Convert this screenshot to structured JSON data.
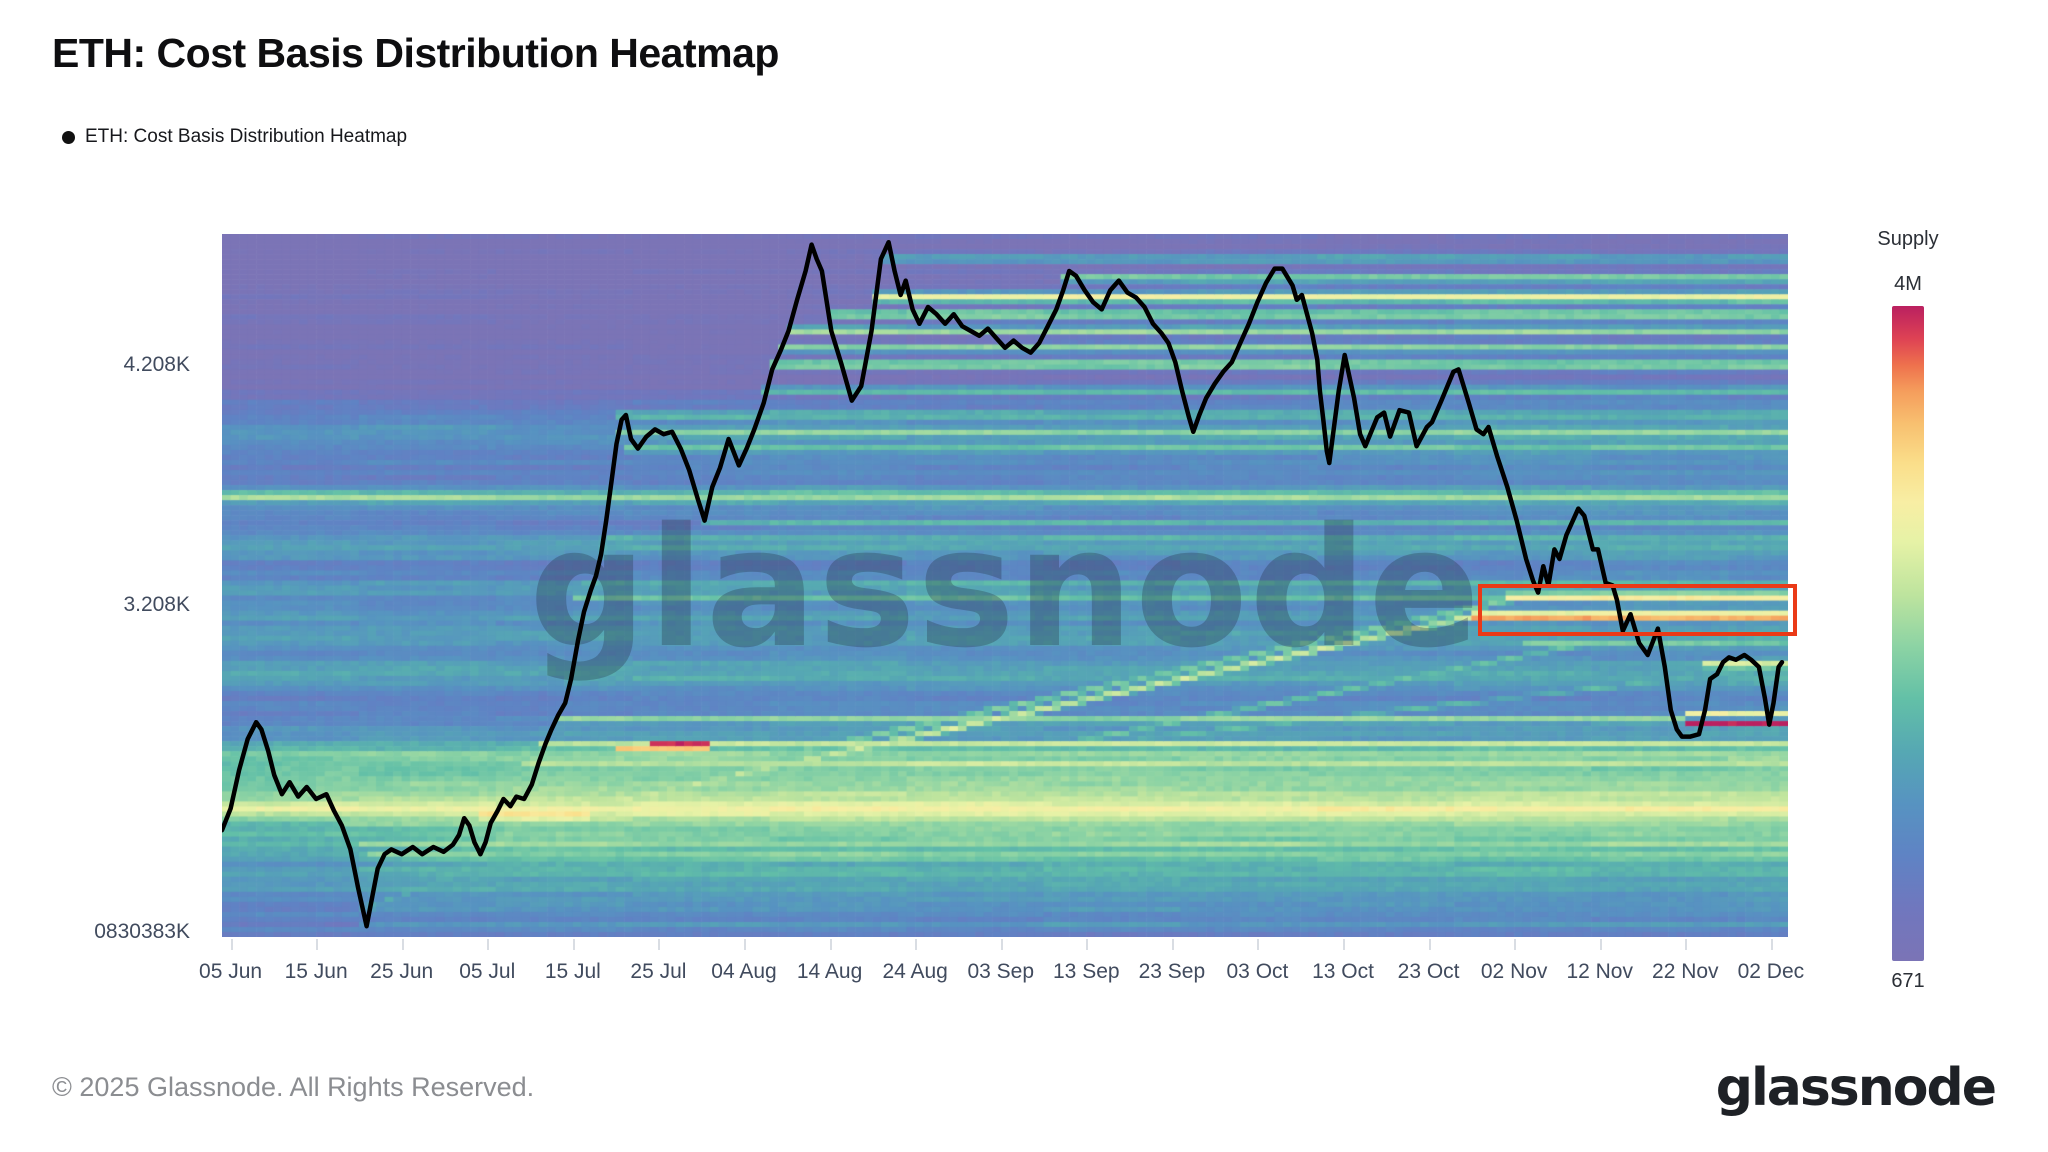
{
  "header": {
    "title": "ETH: Cost Basis Distribution Heatmap"
  },
  "legend": {
    "label": "ETH: Cost Basis Distribution Heatmap"
  },
  "watermark": {
    "text": "glassnode"
  },
  "footer": {
    "copyright": "© 2025 Glassnode. All Rights Reserved.",
    "brand": "glassnode"
  },
  "colorbar": {
    "title": "Supply",
    "max_label": "4M",
    "min_label": "671"
  },
  "colors": {
    "annotation": "#ea3a17",
    "price_line": "#000000",
    "title_text": "#0e0e10",
    "axis_text": "#414b5e",
    "footer_text": "#8b8d91",
    "brand_text": "#1e2126"
  },
  "annotation_box": {
    "day0": 146.8,
    "price0": 3.296,
    "day1": 184.0,
    "price1": 3.079
  },
  "chart_data": {
    "type": "heatmap",
    "title": "ETH: Cost Basis Distribution Heatmap",
    "xlabel": "",
    "ylabel": "",
    "x_domain_days": [
      0,
      183
    ],
    "price_domain": [
      1.825,
      4.754
    ],
    "grid": false,
    "legend_position": "top-left",
    "y_ticks": [
      {
        "label": "4.208K",
        "price": 4.208
      },
      {
        "label": "3.208K",
        "price": 3.208
      },
      {
        "label": "0830383K",
        "price": 1.845
      }
    ],
    "x_ticks": [
      {
        "label": "05 Jun",
        "day": 1
      },
      {
        "label": "15 Jun",
        "day": 11
      },
      {
        "label": "25 Jun",
        "day": 21
      },
      {
        "label": "05 Jul",
        "day": 31
      },
      {
        "label": "15 Jul",
        "day": 41
      },
      {
        "label": "25 Jul",
        "day": 51
      },
      {
        "label": "04 Aug",
        "day": 61
      },
      {
        "label": "14 Aug",
        "day": 71
      },
      {
        "label": "24 Aug",
        "day": 81
      },
      {
        "label": "03 Sep",
        "day": 91
      },
      {
        "label": "13 Sep",
        "day": 101
      },
      {
        "label": "23 Sep",
        "day": 111
      },
      {
        "label": "03 Oct",
        "day": 121
      },
      {
        "label": "13 Oct",
        "day": 131
      },
      {
        "label": "23 Oct",
        "day": 141
      },
      {
        "label": "02 Nov",
        "day": 151
      },
      {
        "label": "12 Nov",
        "day": 161
      },
      {
        "label": "22 Nov",
        "day": 171
      },
      {
        "label": "02 Dec",
        "day": 181
      }
    ],
    "supply_scale": {
      "min": 671,
      "max": 4000000,
      "min_label": "671",
      "max_label": "4M",
      "label": "Supply"
    },
    "colormap": [
      [
        0.0,
        "#7b74b6"
      ],
      [
        0.08,
        "#7077be"
      ],
      [
        0.16,
        "#5f83c4"
      ],
      [
        0.24,
        "#5793c1"
      ],
      [
        0.32,
        "#56a8b3"
      ],
      [
        0.4,
        "#63c0a7"
      ],
      [
        0.48,
        "#8cd3a4"
      ],
      [
        0.56,
        "#bee49e"
      ],
      [
        0.64,
        "#e6f2a6"
      ],
      [
        0.7,
        "#f8eea4"
      ],
      [
        0.76,
        "#fade8a"
      ],
      [
        0.82,
        "#f8c070"
      ],
      [
        0.87,
        "#f59d5c"
      ],
      [
        0.91,
        "#ee714d"
      ],
      [
        0.95,
        "#de4254"
      ],
      [
        1.0,
        "#ba2060"
      ]
    ],
    "price_line": [
      [
        0,
        2.27
      ],
      [
        1,
        2.36
      ],
      [
        2,
        2.52
      ],
      [
        3,
        2.65
      ],
      [
        4,
        2.72
      ],
      [
        4.6,
        2.69
      ],
      [
        5.4,
        2.6
      ],
      [
        6.1,
        2.5
      ],
      [
        7,
        2.42
      ],
      [
        7.9,
        2.47
      ],
      [
        8.9,
        2.41
      ],
      [
        9.9,
        2.45
      ],
      [
        11,
        2.4
      ],
      [
        12.2,
        2.42
      ],
      [
        13.1,
        2.35
      ],
      [
        14,
        2.29
      ],
      [
        15,
        2.19
      ],
      [
        15.9,
        2.03
      ],
      [
        16.9,
        1.87
      ],
      [
        17.6,
        2.0
      ],
      [
        18.2,
        2.11
      ],
      [
        19,
        2.17
      ],
      [
        19.8,
        2.19
      ],
      [
        21,
        2.17
      ],
      [
        22.3,
        2.2
      ],
      [
        23.4,
        2.17
      ],
      [
        24.7,
        2.2
      ],
      [
        25.9,
        2.18
      ],
      [
        27,
        2.21
      ],
      [
        27.7,
        2.25
      ],
      [
        28.3,
        2.32
      ],
      [
        28.9,
        2.29
      ],
      [
        29.5,
        2.22
      ],
      [
        30.2,
        2.17
      ],
      [
        30.8,
        2.22
      ],
      [
        31.4,
        2.3
      ],
      [
        32.2,
        2.35
      ],
      [
        32.9,
        2.4
      ],
      [
        33.7,
        2.37
      ],
      [
        34.4,
        2.41
      ],
      [
        35.3,
        2.4
      ],
      [
        36.2,
        2.46
      ],
      [
        37,
        2.55
      ],
      [
        37.8,
        2.63
      ],
      [
        38.5,
        2.69
      ],
      [
        39.3,
        2.75
      ],
      [
        40.1,
        2.8
      ],
      [
        40.8,
        2.9
      ],
      [
        41.6,
        3.06
      ],
      [
        42.3,
        3.18
      ],
      [
        43.1,
        3.27
      ],
      [
        43.7,
        3.33
      ],
      [
        44.3,
        3.42
      ],
      [
        44.9,
        3.56
      ],
      [
        45.5,
        3.72
      ],
      [
        46.1,
        3.88
      ],
      [
        46.7,
        3.98
      ],
      [
        47.2,
        4.0
      ],
      [
        47.8,
        3.9
      ],
      [
        48.6,
        3.86
      ],
      [
        49.6,
        3.91
      ],
      [
        50.6,
        3.94
      ],
      [
        51.6,
        3.92
      ],
      [
        52.6,
        3.93
      ],
      [
        53.6,
        3.86
      ],
      [
        54.6,
        3.77
      ],
      [
        55.6,
        3.65
      ],
      [
        56.4,
        3.56
      ],
      [
        57.3,
        3.7
      ],
      [
        58.2,
        3.78
      ],
      [
        59.2,
        3.9
      ],
      [
        60.4,
        3.79
      ],
      [
        61.3,
        3.86
      ],
      [
        62.2,
        3.94
      ],
      [
        63.3,
        4.05
      ],
      [
        64.3,
        4.19
      ],
      [
        65.3,
        4.27
      ],
      [
        66.2,
        4.35
      ],
      [
        67.2,
        4.48
      ],
      [
        68.2,
        4.6
      ],
      [
        68.9,
        4.71
      ],
      [
        69.5,
        4.65
      ],
      [
        70.1,
        4.6
      ],
      [
        71.2,
        4.35
      ],
      [
        72.4,
        4.21
      ],
      [
        73.6,
        4.06
      ],
      [
        74.7,
        4.12
      ],
      [
        75.9,
        4.35
      ],
      [
        77,
        4.65
      ],
      [
        77.9,
        4.72
      ],
      [
        78.6,
        4.6
      ],
      [
        79.3,
        4.5
      ],
      [
        79.9,
        4.56
      ],
      [
        80.7,
        4.44
      ],
      [
        81.5,
        4.38
      ],
      [
        82.5,
        4.45
      ],
      [
        83.5,
        4.42
      ],
      [
        84.5,
        4.38
      ],
      [
        85.5,
        4.42
      ],
      [
        86.5,
        4.37
      ],
      [
        87.5,
        4.35
      ],
      [
        88.5,
        4.33
      ],
      [
        89.5,
        4.36
      ],
      [
        90.5,
        4.32
      ],
      [
        91.5,
        4.28
      ],
      [
        92.5,
        4.31
      ],
      [
        93.5,
        4.28
      ],
      [
        94.5,
        4.26
      ],
      [
        95.5,
        4.3
      ],
      [
        96.5,
        4.37
      ],
      [
        97.5,
        4.44
      ],
      [
        98.3,
        4.52
      ],
      [
        99,
        4.6
      ],
      [
        99.8,
        4.58
      ],
      [
        100.8,
        4.52
      ],
      [
        101.8,
        4.47
      ],
      [
        102.8,
        4.44
      ],
      [
        103.8,
        4.52
      ],
      [
        104.8,
        4.56
      ],
      [
        105.8,
        4.51
      ],
      [
        106.8,
        4.49
      ],
      [
        107.8,
        4.45
      ],
      [
        108.8,
        4.38
      ],
      [
        109.8,
        4.34
      ],
      [
        110.6,
        4.3
      ],
      [
        111.4,
        4.22
      ],
      [
        112.2,
        4.1
      ],
      [
        113,
        3.99
      ],
      [
        113.5,
        3.93
      ],
      [
        114.2,
        4.0
      ],
      [
        115,
        4.07
      ],
      [
        116,
        4.13
      ],
      [
        117,
        4.18
      ],
      [
        118,
        4.22
      ],
      [
        119,
        4.3
      ],
      [
        120,
        4.38
      ],
      [
        121,
        4.47
      ],
      [
        122,
        4.55
      ],
      [
        123,
        4.61
      ],
      [
        123.9,
        4.61
      ],
      [
        125.1,
        4.54
      ],
      [
        125.6,
        4.48
      ],
      [
        126.2,
        4.5
      ],
      [
        127.4,
        4.34
      ],
      [
        128,
        4.23
      ],
      [
        128.3,
        4.1
      ],
      [
        128.7,
        3.98
      ],
      [
        129.1,
        3.85
      ],
      [
        129.4,
        3.8
      ],
      [
        130.5,
        4.1
      ],
      [
        131.2,
        4.25
      ],
      [
        132.3,
        4.07
      ],
      [
        133,
        3.92
      ],
      [
        133.6,
        3.87
      ],
      [
        135,
        3.99
      ],
      [
        135.8,
        4.01
      ],
      [
        136.5,
        3.91
      ],
      [
        137.6,
        4.02
      ],
      [
        138.7,
        4.01
      ],
      [
        139.6,
        3.87
      ],
      [
        140.8,
        3.95
      ],
      [
        141.4,
        3.97
      ],
      [
        142.5,
        4.06
      ],
      [
        143.9,
        4.18
      ],
      [
        144.5,
        4.19
      ],
      [
        145.7,
        4.05
      ],
      [
        146.6,
        3.94
      ],
      [
        147.4,
        3.92
      ],
      [
        148,
        3.95
      ],
      [
        149,
        3.83
      ],
      [
        150.2,
        3.7
      ],
      [
        151.3,
        3.56
      ],
      [
        152.4,
        3.4
      ],
      [
        153.2,
        3.31
      ],
      [
        153.8,
        3.26
      ],
      [
        154.4,
        3.37
      ],
      [
        155,
        3.29
      ],
      [
        155.7,
        3.44
      ],
      [
        156.3,
        3.4
      ],
      [
        157.1,
        3.5
      ],
      [
        158.5,
        3.61
      ],
      [
        159.2,
        3.58
      ],
      [
        160.2,
        3.44
      ],
      [
        160.8,
        3.44
      ],
      [
        161.7,
        3.3
      ],
      [
        162.5,
        3.29
      ],
      [
        163,
        3.23
      ],
      [
        163.7,
        3.1
      ],
      [
        164.6,
        3.17
      ],
      [
        165.6,
        3.05
      ],
      [
        166.6,
        3.0
      ],
      [
        167.8,
        3.11
      ],
      [
        168.6,
        2.95
      ],
      [
        169.3,
        2.77
      ],
      [
        170,
        2.69
      ],
      [
        170.6,
        2.66
      ],
      [
        171.6,
        2.66
      ],
      [
        172.6,
        2.67
      ],
      [
        173.3,
        2.77
      ],
      [
        173.9,
        2.9
      ],
      [
        174.7,
        2.92
      ],
      [
        175.4,
        2.97
      ],
      [
        176.1,
        2.99
      ],
      [
        176.9,
        2.98
      ],
      [
        177.9,
        3.0
      ],
      [
        178.7,
        2.98
      ],
      [
        179.6,
        2.95
      ],
      [
        180.3,
        2.82
      ],
      [
        180.8,
        2.71
      ],
      [
        181.3,
        2.8
      ],
      [
        181.9,
        2.95
      ],
      [
        182.3,
        2.97
      ]
    ],
    "preseed": {
      "base": 0.16,
      "range": [
        1.86,
        4.05
      ],
      "bumps": [
        [
          2.42,
          0.1,
          0.28
        ],
        [
          2.58,
          0.05,
          0.18
        ],
        [
          2.35,
          0.03,
          0.22
        ],
        [
          2.2,
          0.07,
          0.14
        ],
        [
          3.66,
          0.025,
          0.22
        ],
        [
          3.45,
          0.03,
          0.14
        ],
        [
          3.28,
          0.03,
          0.12
        ],
        [
          3.15,
          0.03,
          0.1
        ],
        [
          3.07,
          0.03,
          0.14
        ],
        [
          2.95,
          0.04,
          0.1
        ],
        [
          3.93,
          0.03,
          0.1
        ],
        [
          2.05,
          0.05,
          0.1
        ],
        [
          2.9,
          0.03,
          0.08
        ]
      ]
    },
    "accumulation": {
      "sigma": 0.045,
      "halo_sigma": 0.12,
      "halo_frac": 0.35,
      "decay": 0.025,
      "cap": 0.72,
      "weights": [
        [
          0,
          0.012
        ],
        [
          45,
          0.007
        ],
        [
          95,
          0.005
        ],
        [
          140,
          0.008
        ]
      ]
    },
    "bands": [
      [
        4.65,
        77,
        183,
        0.34,
        0.026
      ],
      [
        4.57,
        98,
        183,
        0.48,
        0.026
      ],
      [
        4.49,
        76,
        183,
        0.64,
        0.03
      ],
      [
        4.42,
        71,
        183,
        0.5,
        0.026
      ],
      [
        4.35,
        66,
        183,
        0.52,
        0.026
      ],
      [
        4.28,
        65,
        183,
        0.45,
        0.026
      ],
      [
        4.21,
        64,
        183,
        0.5,
        0.026
      ],
      [
        4.1,
        63,
        183,
        0.38,
        0.026
      ],
      [
        4.0,
        46,
        183,
        0.42,
        0.026
      ],
      [
        3.93,
        46,
        183,
        0.5,
        0.026
      ],
      [
        3.86,
        47,
        183,
        0.42,
        0.026
      ],
      [
        3.66,
        0,
        183,
        0.52,
        0.026
      ],
      [
        3.55,
        56,
        183,
        0.38,
        0.026
      ],
      [
        3.49,
        45,
        183,
        0.33,
        0.024
      ],
      [
        3.44,
        44,
        183,
        0.36,
        0.024
      ],
      [
        3.3,
        42,
        183,
        0.34,
        0.024
      ],
      [
        3.24,
        41,
        150,
        0.42,
        0.026
      ],
      [
        3.24,
        150,
        183,
        0.72,
        0.028
      ],
      [
        3.16,
        146,
        183,
        0.86,
        0.028
      ],
      [
        3.05,
        152,
        183,
        0.45,
        0.026
      ],
      [
        2.96,
        173,
        183,
        0.62,
        0.026
      ],
      [
        2.9,
        40,
        183,
        0.34,
        0.024
      ],
      [
        2.757,
        171,
        183,
        0.68,
        0.02
      ],
      [
        2.715,
        171,
        183,
        1.0,
        0.022
      ],
      [
        2.73,
        39,
        171,
        0.5,
        0.024
      ],
      [
        2.63,
        37,
        183,
        0.55,
        0.026
      ],
      [
        2.615,
        46,
        57,
        0.85,
        0.026
      ],
      [
        2.63,
        50.5,
        57,
        0.95,
        0.022
      ],
      [
        2.55,
        35,
        183,
        0.6,
        0.026
      ],
      [
        2.46,
        20,
        183,
        0.52,
        0.026
      ],
      [
        2.41,
        8,
        183,
        0.6,
        0.026
      ],
      [
        2.35,
        6,
        183,
        0.68,
        0.028
      ],
      [
        2.33,
        30,
        43,
        0.85,
        0.026
      ],
      [
        2.29,
        14,
        183,
        0.55,
        0.026
      ],
      [
        2.21,
        16,
        183,
        0.5,
        0.026
      ],
      [
        2.17,
        17,
        183,
        0.45,
        0.024
      ],
      [
        2.1,
        16,
        183,
        0.4,
        0.024
      ],
      [
        1.95,
        16.5,
        183,
        0.32,
        0.024
      ],
      [
        1.88,
        16.5,
        183,
        0.3,
        0.024
      ]
    ],
    "diagonals": [
      [
        38,
        2.33,
        146,
        3.16,
        0.58,
        0.024
      ],
      [
        44,
        2.42,
        152,
        3.24,
        0.45,
        0.022
      ],
      [
        50,
        2.3,
        160,
        3.05,
        0.4,
        0.022
      ],
      [
        25,
        2.2,
        60,
        2.5,
        0.35,
        0.022
      ],
      [
        17,
        1.95,
        50,
        2.35,
        0.33,
        0.022
      ],
      [
        70,
        2.5,
        183,
        2.95,
        0.36,
        0.02
      ]
    ]
  }
}
